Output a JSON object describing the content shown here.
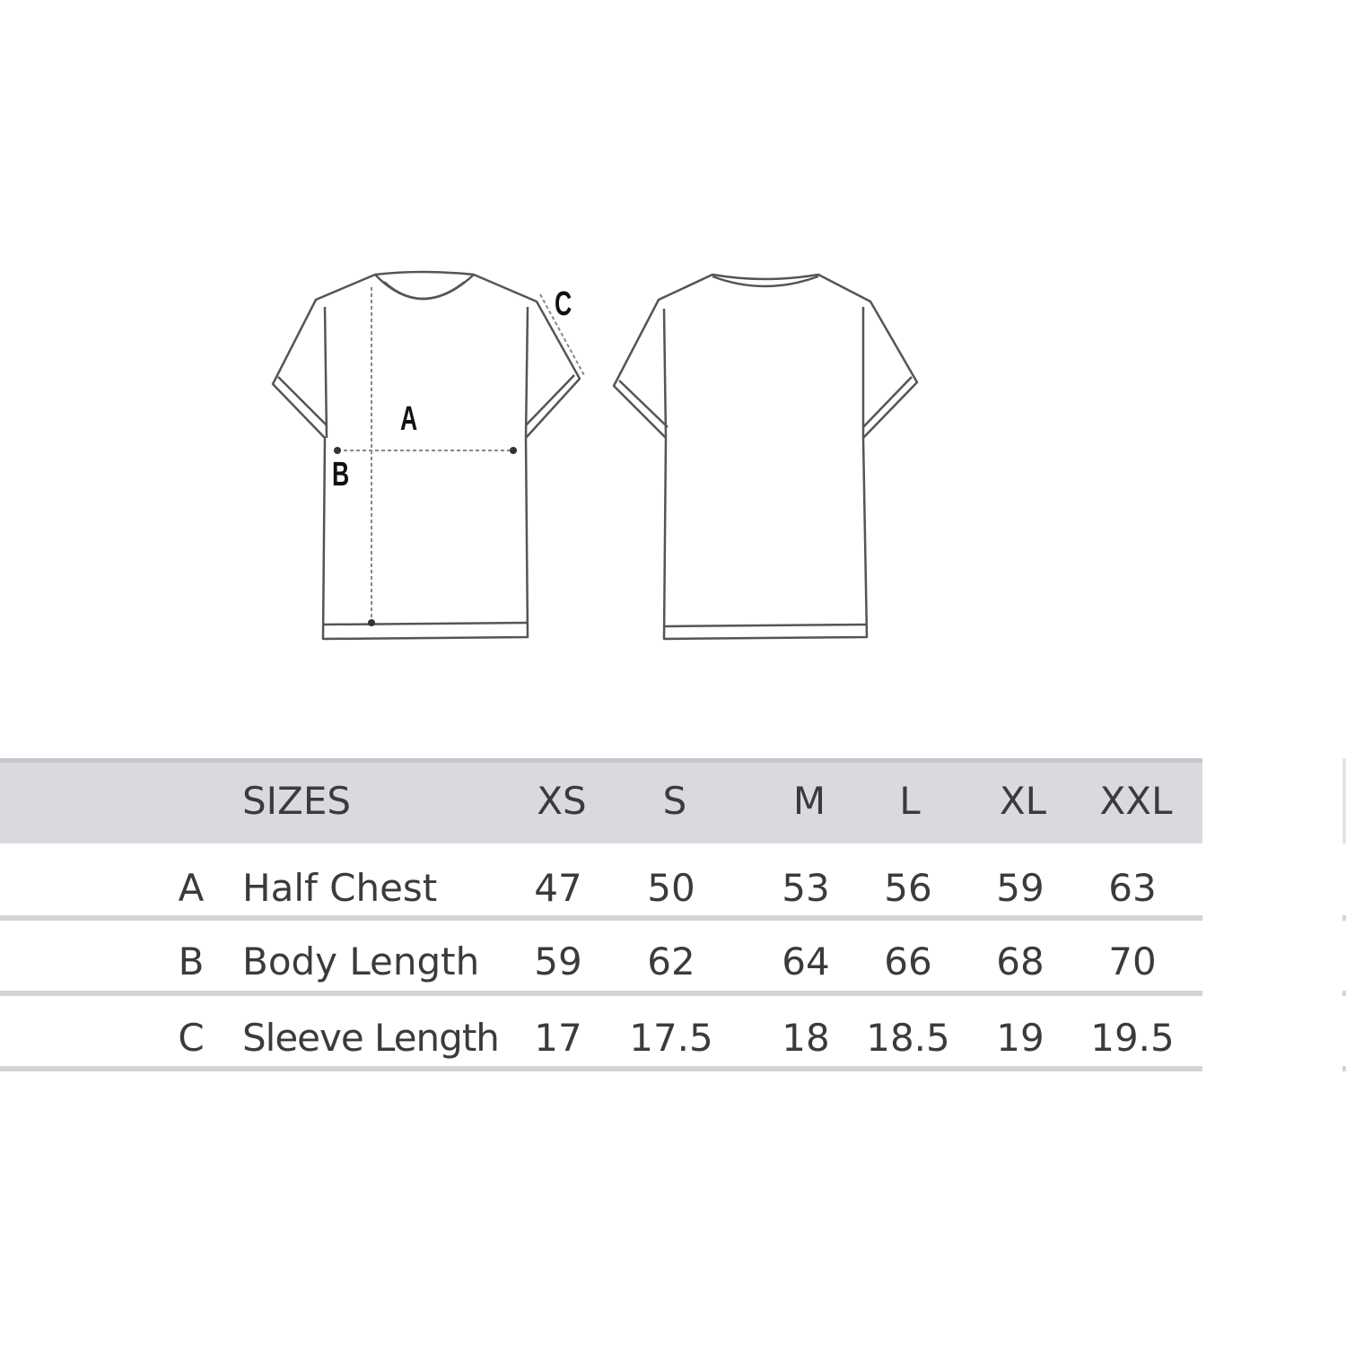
{
  "diagram": {
    "labels": {
      "a": "A",
      "b": "B",
      "c": "C"
    },
    "views": [
      "front",
      "back"
    ]
  },
  "table": {
    "header": {
      "label": "SIZES",
      "sizes": [
        "XS",
        "S",
        "M",
        "L",
        "XL",
        "XXL"
      ]
    },
    "rows": [
      {
        "key": "A",
        "label": "Half Chest",
        "values": [
          "47",
          "50",
          "53",
          "56",
          "59",
          "63"
        ]
      },
      {
        "key": "B",
        "label": "Body Length",
        "values": [
          "59",
          "62",
          "64",
          "66",
          "68",
          "70"
        ]
      },
      {
        "key": "C",
        "label": "Sleeve Length",
        "values": [
          "17",
          "17.5",
          "18",
          "18.5",
          "19",
          "19.5"
        ]
      }
    ],
    "colors": {
      "header_bg": "#d9dadd",
      "rule": "#d3d4d6",
      "text": "#3b3b3d"
    }
  }
}
